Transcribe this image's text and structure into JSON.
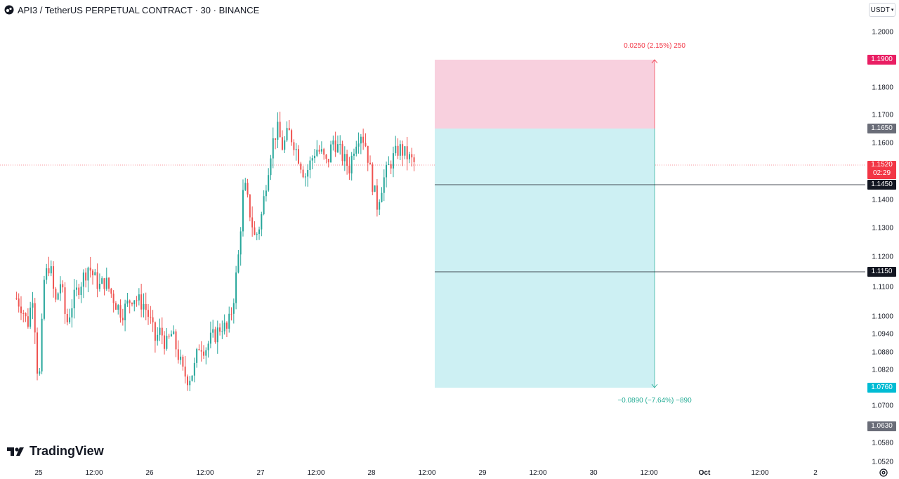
{
  "header": {
    "symbol": "API3",
    "title": "API3 / TetherUS PERPETUAL CONTRACT · 30 · BINANCE"
  },
  "currency": {
    "label": "USDT"
  },
  "brand": {
    "name": "TradingView"
  },
  "price_axis": {
    "ticks": [
      "1.2000",
      "1.1800",
      "1.1700",
      "1.1600",
      "1.1400",
      "1.1300",
      "1.1200",
      "1.1100",
      "1.1000",
      "1.0940",
      "1.0880",
      "1.0820",
      "1.0700",
      "1.0580",
      "1.0520"
    ]
  },
  "time_axis": {
    "labels": [
      "25",
      "12:00",
      "26",
      "12:00",
      "27",
      "12:00",
      "28",
      "12:00",
      "29",
      "12:00",
      "30",
      "12:00",
      "Oct",
      "12:00",
      "2"
    ]
  },
  "badges": {
    "target": {
      "price": "1.1900",
      "color": "#e91e63"
    },
    "entry": {
      "price": "1.1650",
      "color": "#6a6d78"
    },
    "current": {
      "price": "1.1520",
      "countdown": "02:29",
      "color": "#f23645"
    },
    "level1": {
      "price": "1.1450",
      "color": "#131722"
    },
    "level2": {
      "price": "1.1150",
      "color": "#131722"
    },
    "stop": {
      "price": "1.0760",
      "color": "#00bcd4"
    },
    "low": {
      "price": "1.0630",
      "color": "#6a6d78"
    }
  },
  "position": {
    "target_label": "0.0250 (2.15%) 250",
    "stop_label": "−0.0890 (−7.64%) −890",
    "entry": 1.165,
    "target": 1.19,
    "stop": 1.076,
    "profit_color": "#f8d0de",
    "loss_color": "#cdf0f3"
  },
  "horizontal_lines": [
    1.145,
    1.115
  ],
  "chart_data": {
    "type": "candlestick",
    "interval": "30",
    "up_color": "#26a69a",
    "down_color": "#ef5350",
    "close_path": [
      [
        24.8,
        1.106
      ],
      [
        24.85,
        1.103
      ],
      [
        24.9,
        1.097
      ],
      [
        24.95,
        1.108
      ],
      [
        25.0,
        1.074
      ],
      [
        25.05,
        1.112
      ],
      [
        25.1,
        1.118
      ],
      [
        25.15,
        1.104
      ],
      [
        25.2,
        1.112
      ],
      [
        25.25,
        1.097
      ],
      [
        25.3,
        1.104
      ],
      [
        25.35,
        1.109
      ],
      [
        25.4,
        1.113
      ],
      [
        25.45,
        1.117
      ],
      [
        25.5,
        1.113
      ],
      [
        25.55,
        1.11
      ],
      [
        25.6,
        1.112
      ],
      [
        25.65,
        1.108
      ],
      [
        25.7,
        1.104
      ],
      [
        25.75,
        1.101
      ],
      [
        25.8,
        1.104
      ],
      [
        25.85,
        1.107
      ],
      [
        25.9,
        1.105
      ],
      [
        25.95,
        1.104
      ],
      [
        26.0,
        1.099
      ],
      [
        26.05,
        1.092
      ],
      [
        26.1,
        1.095
      ],
      [
        26.15,
        1.09
      ],
      [
        26.2,
        1.094
      ],
      [
        26.25,
        1.088
      ],
      [
        26.3,
        1.081
      ],
      [
        26.35,
        1.079
      ],
      [
        26.4,
        1.082
      ],
      [
        26.45,
        1.091
      ],
      [
        26.5,
        1.089
      ],
      [
        26.55,
        1.092
      ],
      [
        26.6,
        1.094
      ],
      [
        26.65,
        1.097
      ],
      [
        26.7,
        1.095
      ],
      [
        26.75,
        1.104
      ],
      [
        26.8,
        1.12
      ],
      [
        26.85,
        1.146
      ],
      [
        26.9,
        1.136
      ],
      [
        26.95,
        1.126
      ],
      [
        27.0,
        1.132
      ],
      [
        27.05,
        1.146
      ],
      [
        27.1,
        1.159
      ],
      [
        27.15,
        1.165
      ],
      [
        27.2,
        1.158
      ],
      [
        27.25,
        1.164
      ],
      [
        27.3,
        1.16
      ],
      [
        27.35,
        1.154
      ],
      [
        27.4,
        1.148
      ],
      [
        27.45,
        1.153
      ],
      [
        27.5,
        1.158
      ],
      [
        27.55,
        1.156
      ],
      [
        27.6,
        1.152
      ],
      [
        27.65,
        1.161
      ],
      [
        27.7,
        1.158
      ],
      [
        27.75,
        1.154
      ],
      [
        27.8,
        1.151
      ],
      [
        27.85,
        1.16
      ],
      [
        27.9,
        1.164
      ],
      [
        27.95,
        1.159
      ],
      [
        28.0,
        1.147
      ],
      [
        28.05,
        1.138
      ],
      [
        28.1,
        1.146
      ],
      [
        28.15,
        1.151
      ],
      [
        28.2,
        1.155
      ],
      [
        28.25,
        1.158
      ],
      [
        28.3,
        1.156
      ],
      [
        28.35,
        1.154
      ],
      [
        28.4,
        1.152
      ]
    ],
    "last_price": 1.152,
    "markers": {
      "low_marker_y": 1.063
    }
  }
}
